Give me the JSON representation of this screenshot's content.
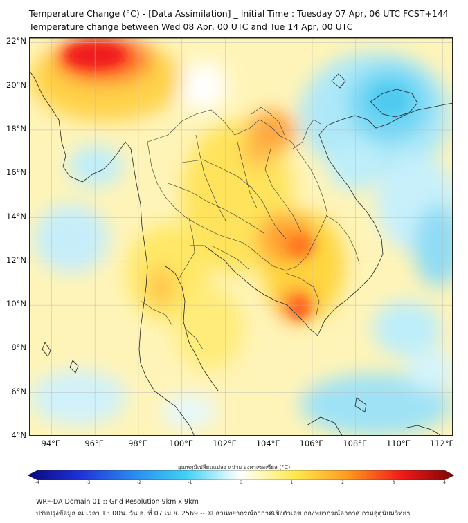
{
  "header": {
    "title_line1": "Temperature Change (°C) - [Data Assimilation] _ Initial Time : Tuesday 07 Apr, 06 UTC FCST+144",
    "title_line2": "Temperature change between Wed 08 Apr, 00 UTC and Tue 14 Apr, 00 UTC"
  },
  "map": {
    "lat_labels": [
      "22°N",
      "20°N",
      "18°N",
      "16°N",
      "14°N",
      "12°N",
      "10°N",
      "8°N",
      "6°N",
      "4°N"
    ],
    "lon_labels": [
      "94°E",
      "96°E",
      "98°E",
      "100°E",
      "102°E",
      "104°E",
      "106°E",
      "108°E",
      "110°E",
      "112°E"
    ],
    "lat_values": [
      22,
      20,
      18,
      16,
      14,
      12,
      10,
      8,
      6,
      4
    ],
    "lon_values": [
      94,
      96,
      98,
      100,
      102,
      104,
      106,
      108,
      110,
      112
    ],
    "extent": {
      "lon_min": 93,
      "lon_max": 112.5,
      "lat_min": 4,
      "lat_max": 22.2
    },
    "gridlines": true,
    "colors": {
      "cold_strong": "#1010a0",
      "cold": "#5ad0f0",
      "neutral": "#ffffff",
      "warm": "#ffe24a",
      "hot": "#ff7a1a",
      "very_hot": "#e01010"
    }
  },
  "colorbar": {
    "label": "อุณหภูมิเปลี่ยนแปลง หน่วย องศาเซลเซียส (°C)",
    "ticks": [
      "-4",
      "-3",
      "-2",
      "-1",
      "0",
      "1",
      "2",
      "3",
      "4"
    ],
    "min": -4,
    "max": 4
  },
  "footer": {
    "line1": "WRF-DA Domain 01 :: Grid Resolution 9km x 9km",
    "line2": "ปรับปรุงข้อมูล ณ เวลา 13:00น. วัน อ. ที่ 07 เม.ย. 2569 -- © ส่วนพยากรณ์อากาศเชิงตัวเลข กองพยากรณ์อากาศ กรมอุตุนิยมวิทยา"
  }
}
